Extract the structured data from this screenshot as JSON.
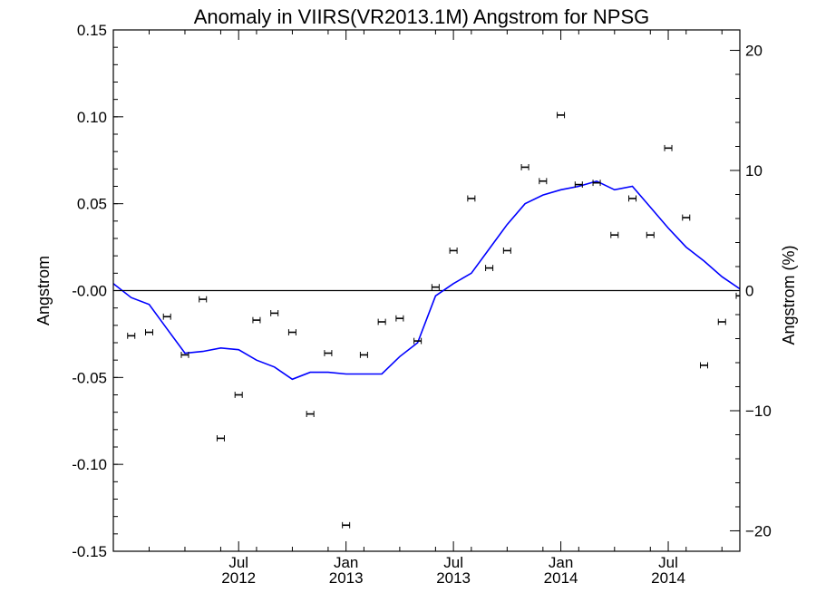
{
  "chart_data": {
    "type": "scatter",
    "title": "Anomaly in VIIRS(VR2013.1M) Angstrom for NPSG",
    "ylabel": "Angstrom",
    "y2label": "Angstrom (%)",
    "xlim": [
      "2011-12",
      "2014-11"
    ],
    "ylim": [
      -0.15,
      0.15
    ],
    "y2lim": [
      -21.7,
      21.7
    ],
    "yticks": [
      {
        "value": 0.15,
        "label": "0.15"
      },
      {
        "value": 0.1,
        "label": "0.10"
      },
      {
        "value": 0.05,
        "label": "0.05"
      },
      {
        "value": 0.0,
        "label": "-0.00"
      },
      {
        "value": -0.05,
        "label": "-0.05"
      },
      {
        "value": -0.1,
        "label": "-0.10"
      },
      {
        "value": -0.15,
        "label": "-0.15"
      }
    ],
    "y2ticks": [
      {
        "value": 20,
        "label": "20"
      },
      {
        "value": 10,
        "label": "10"
      },
      {
        "value": 0,
        "label": "0"
      },
      {
        "value": -10,
        "label": "−10"
      },
      {
        "value": -20,
        "label": "−20"
      }
    ],
    "xticks": [
      {
        "value": "2012-07",
        "line1": "Jul",
        "line2": "2012"
      },
      {
        "value": "2013-01",
        "line1": "Jan",
        "line2": "2013"
      },
      {
        "value": "2013-07",
        "line1": "Jul",
        "line2": "2013"
      },
      {
        "value": "2014-01",
        "line1": "Jan",
        "line2": "2014"
      },
      {
        "value": "2014-07",
        "line1": "Jul",
        "line2": "2014"
      }
    ],
    "zero_line": 0,
    "series": [
      {
        "kind": "points_with_errorbars",
        "color": "#000000",
        "x": [
          "2012-01",
          "2012-02",
          "2012-03",
          "2012-04",
          "2012-05",
          "2012-06",
          "2012-07",
          "2012-08",
          "2012-09",
          "2012-10",
          "2012-11",
          "2012-12",
          "2013-01",
          "2013-02",
          "2013-03",
          "2013-04",
          "2013-05",
          "2013-06",
          "2013-07",
          "2013-08",
          "2013-09",
          "2013-10",
          "2013-11",
          "2013-12",
          "2014-01",
          "2014-02",
          "2014-03",
          "2014-04",
          "2014-05",
          "2014-06",
          "2014-07",
          "2014-08",
          "2014-09",
          "2014-10",
          "2014-11"
        ],
        "y": [
          -0.026,
          -0.024,
          -0.015,
          -0.037,
          -0.005,
          -0.085,
          -0.06,
          -0.017,
          -0.013,
          -0.024,
          -0.071,
          -0.036,
          -0.135,
          -0.037,
          -0.018,
          -0.016,
          -0.029,
          0.002,
          0.023,
          0.053,
          0.013,
          0.023,
          0.071,
          0.063,
          0.101,
          0.061,
          0.062,
          0.032,
          0.053,
          0.032,
          0.082,
          0.042,
          -0.043,
          -0.018,
          -0.003
        ],
        "err": 0.001
      },
      {
        "kind": "line",
        "color": "#0000ff",
        "x": [
          "2011-12",
          "2012-01",
          "2012-02",
          "2012-03",
          "2012-04",
          "2012-05",
          "2012-06",
          "2012-07",
          "2012-08",
          "2012-09",
          "2012-10",
          "2012-11",
          "2012-12",
          "2013-01",
          "2013-02",
          "2013-03",
          "2013-04",
          "2013-05",
          "2013-06",
          "2013-07",
          "2013-08",
          "2013-09",
          "2013-10",
          "2013-11",
          "2013-12",
          "2014-01",
          "2014-02",
          "2014-03",
          "2014-04",
          "2014-05",
          "2014-06",
          "2014-07",
          "2014-08",
          "2014-09",
          "2014-10",
          "2014-11"
        ],
        "y": [
          0.004,
          -0.004,
          -0.008,
          -0.022,
          -0.036,
          -0.035,
          -0.033,
          -0.034,
          -0.04,
          -0.044,
          -0.051,
          -0.047,
          -0.047,
          -0.048,
          -0.048,
          -0.048,
          -0.038,
          -0.03,
          -0.003,
          0.004,
          0.01,
          0.024,
          0.038,
          0.05,
          0.055,
          0.058,
          0.06,
          0.063,
          0.058,
          0.06,
          0.048,
          0.036,
          0.025,
          0.017,
          0.008,
          0.001
        ]
      }
    ]
  }
}
